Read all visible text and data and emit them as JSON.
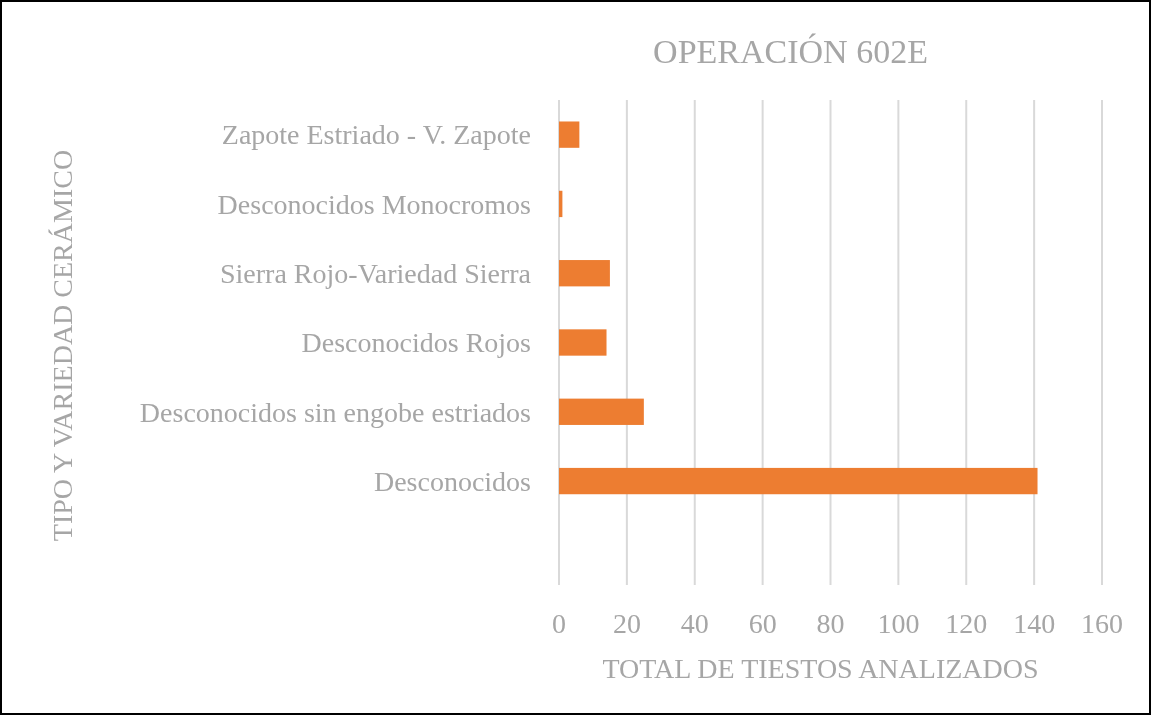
{
  "chart_data": {
    "type": "bar",
    "orientation": "horizontal",
    "title": "OPERACIÓN 602E",
    "xlabel": "TOTAL DE TIESTOS ANALIZADOS",
    "ylabel": "TIPO Y VARIEDAD CERÁMICO",
    "categories": [
      "Zapote Estriado - V. Zapote",
      "Desconocidos Monocromos",
      "Sierra Rojo-Variedad Sierra",
      "Desconocidos Rojos",
      "Desconocidos sin engobe estriados",
      "Desconocidos",
      null
    ],
    "values": [
      6,
      1,
      15,
      14,
      25,
      141,
      null
    ],
    "color": "#ed7d31",
    "xlim": [
      0,
      160
    ],
    "xticks": [
      0,
      20,
      40,
      60,
      80,
      100,
      120,
      140,
      160
    ],
    "grid": "x"
  }
}
